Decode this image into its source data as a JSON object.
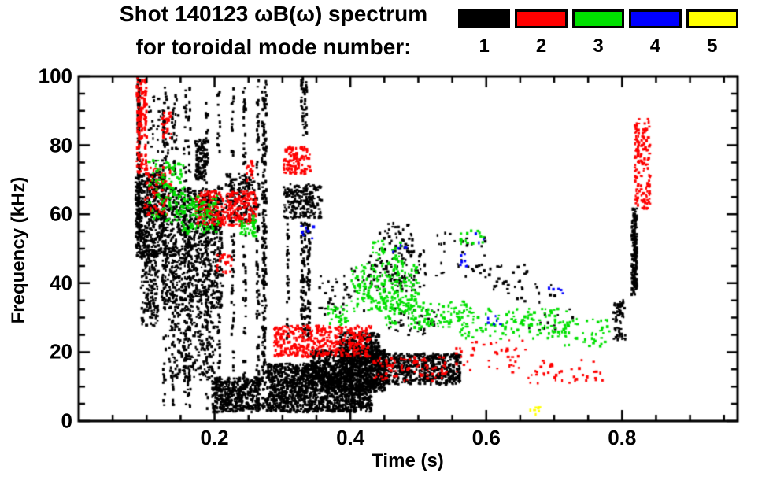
{
  "chart_data": {
    "type": "scatter",
    "title": "Shot 140123 ωB(ω) spectrum",
    "subtitle": "for toroidal mode number:",
    "xlabel": "Time (s)",
    "ylabel": "Frequency (kHz)",
    "xlim": [
      0,
      0.97
    ],
    "ylim": [
      0,
      100
    ],
    "xticks_major": [
      0.2,
      0.4,
      0.6,
      0.8
    ],
    "xtick_labels": [
      "0.2",
      "0.4",
      "0.6",
      "0.8"
    ],
    "x_minor_step": 0.05,
    "yticks_major": [
      0,
      20,
      40,
      60,
      80,
      100
    ],
    "ytick_labels": [
      "0",
      "20",
      "40",
      "60",
      "80",
      "100"
    ],
    "y_minor_step": 5,
    "grid": false,
    "legend_position": "top-right",
    "frame_color": "#000000",
    "background_color": "#ffffff",
    "seed": 42,
    "legend": [
      {
        "label": "1",
        "color": "#000000"
      },
      {
        "label": "2",
        "color": "#ff0000"
      },
      {
        "label": "3",
        "color": "#00e000"
      },
      {
        "label": "4",
        "color": "#0000ff"
      },
      {
        "label": "5",
        "color": "#ffff00"
      }
    ],
    "series": [
      {
        "name": "toroidal mode n=1",
        "color": "#000000",
        "clusters": [
          {
            "t": [
              0.078,
              0.092
            ],
            "f": [
              50,
              100
            ],
            "n": 140,
            "streaks": 2
          },
          {
            "t": [
              0.082,
              0.125
            ],
            "f": [
              48,
              72
            ],
            "n": 500
          },
          {
            "t": [
              0.09,
              0.115
            ],
            "f": [
              28,
              50
            ],
            "n": 160
          },
          {
            "t": [
              0.1,
              0.145
            ],
            "f": [
              72,
              95
            ],
            "n": 70
          },
          {
            "t": [
              0.12,
              0.21
            ],
            "f": [
              33,
              68
            ],
            "n": 900
          },
          {
            "t": [
              0.115,
              0.275
            ],
            "f": [
              4,
              97
            ],
            "n": 600,
            "streaks": 10
          },
          {
            "t": [
              0.17,
              0.185
            ],
            "f": [
              70,
              82
            ],
            "n": 110
          },
          {
            "t": [
              0.13,
              0.2
            ],
            "f": [
              12,
              33
            ],
            "n": 220
          },
          {
            "t": [
              0.195,
              0.265
            ],
            "f": [
              3,
              13
            ],
            "n": 420
          },
          {
            "t": [
              0.215,
              0.26
            ],
            "f": [
              58,
              72
            ],
            "n": 160
          },
          {
            "t": [
              0.262,
              0.275
            ],
            "f": [
              3,
              100
            ],
            "n": 170,
            "streaks": 2
          },
          {
            "t": [
              0.275,
              0.43
            ],
            "f": [
              3,
              17
            ],
            "n": 1500
          },
          {
            "t": [
              0.3,
              0.355
            ],
            "f": [
              59,
              69
            ],
            "n": 200
          },
          {
            "t": [
              0.295,
              0.345
            ],
            "f": [
              24,
              58
            ],
            "n": 160,
            "streaks": 5
          },
          {
            "t": [
              0.325,
              0.34
            ],
            "f": [
              83,
              100
            ],
            "n": 40,
            "streaks": 2
          },
          {
            "t": [
              0.34,
              0.45
            ],
            "f": [
              9,
              21
            ],
            "n": 700
          },
          {
            "t": [
              0.38,
              0.44
            ],
            "f": [
              17,
              26
            ],
            "n": 350
          },
          {
            "t": [
              0.43,
              0.56
            ],
            "f": [
              11,
              20
            ],
            "n": 650
          },
          {
            "t": [
              0.42,
              0.51
            ],
            "f": [
              38,
              50
            ],
            "n": 110
          },
          {
            "t": [
              0.44,
              0.49
            ],
            "f": [
              50,
              58
            ],
            "n": 40
          },
          {
            "t": [
              0.52,
              0.6
            ],
            "f": [
              42,
              55
            ],
            "n": 35
          },
          {
            "t": [
              0.58,
              0.66
            ],
            "f": [
              38,
              46
            ],
            "n": 25
          },
          {
            "t": [
              0.62,
              0.73
            ],
            "f": [
              26,
              40
            ],
            "n": 25
          },
          {
            "t": [
              0.785,
              0.805
            ],
            "f": [
              24,
              36
            ],
            "n": 60
          },
          {
            "t": [
              0.813,
              0.83
            ],
            "f": [
              37,
              62
            ],
            "n": 160,
            "streaks": 3
          },
          {
            "t": [
              0.35,
              0.42
            ],
            "f": [
              30,
              45
            ],
            "n": 40
          },
          {
            "t": [
              0.455,
              0.53
            ],
            "f": [
              25,
              33
            ],
            "n": 40
          }
        ]
      },
      {
        "name": "toroidal mode n=2",
        "color": "#ff0000",
        "clusters": [
          {
            "t": [
              0.082,
              0.098
            ],
            "f": [
              72,
              100
            ],
            "n": 140,
            "streaks": 3
          },
          {
            "t": [
              0.095,
              0.135
            ],
            "f": [
              60,
              74
            ],
            "n": 80
          },
          {
            "t": [
              0.12,
              0.135
            ],
            "f": [
              82,
              90
            ],
            "n": 30
          },
          {
            "t": [
              0.17,
              0.26
            ],
            "f": [
              57,
              67
            ],
            "n": 300
          },
          {
            "t": [
              0.2,
              0.225
            ],
            "f": [
              43,
              49
            ],
            "n": 25
          },
          {
            "t": [
              0.3,
              0.34
            ],
            "f": [
              72,
              80
            ],
            "n": 110
          },
          {
            "t": [
              0.285,
              0.43
            ],
            "f": [
              19,
              28
            ],
            "n": 420
          },
          {
            "t": [
              0.43,
              0.54
            ],
            "f": [
              12,
              19
            ],
            "n": 90
          },
          {
            "t": [
              0.55,
              0.66
            ],
            "f": [
              14,
              24
            ],
            "n": 45
          },
          {
            "t": [
              0.66,
              0.77
            ],
            "f": [
              11,
              18
            ],
            "n": 40
          },
          {
            "t": [
              0.817,
              0.84
            ],
            "f": [
              62,
              88
            ],
            "n": 150
          },
          {
            "t": [
              0.245,
              0.255
            ],
            "f": [
              70,
              76
            ],
            "n": 20
          }
        ]
      },
      {
        "name": "toroidal mode n=3",
        "color": "#00e000",
        "clusters": [
          {
            "t": [
              0.1,
              0.155
            ],
            "f": [
              58,
              76
            ],
            "n": 110
          },
          {
            "t": [
              0.145,
              0.205
            ],
            "f": [
              55,
              66
            ],
            "n": 110
          },
          {
            "t": [
              0.235,
              0.26
            ],
            "f": [
              54,
              60
            ],
            "n": 40
          },
          {
            "t": [
              0.4,
              0.5
            ],
            "f": [
              32,
              46
            ],
            "n": 220
          },
          {
            "t": [
              0.45,
              0.58
            ],
            "f": [
              27,
              35
            ],
            "n": 140
          },
          {
            "t": [
              0.56,
              0.72
            ],
            "f": [
              24,
              33
            ],
            "n": 120
          },
          {
            "t": [
              0.7,
              0.78
            ],
            "f": [
              22,
              30
            ],
            "n": 50
          },
          {
            "t": [
              0.43,
              0.475
            ],
            "f": [
              46,
              53
            ],
            "n": 30
          },
          {
            "t": [
              0.56,
              0.6
            ],
            "f": [
              50,
              56
            ],
            "n": 15
          },
          {
            "t": [
              0.365,
              0.395
            ],
            "f": [
              28,
              34
            ],
            "n": 30
          }
        ]
      },
      {
        "name": "toroidal mode n=4",
        "color": "#0000ff",
        "clusters": [
          {
            "t": [
              0.325,
              0.345
            ],
            "f": [
              53,
              57
            ],
            "n": 8
          },
          {
            "t": [
              0.55,
              0.575
            ],
            "f": [
              45,
              50
            ],
            "n": 9
          },
          {
            "t": [
              0.6,
              0.62
            ],
            "f": [
              28,
              31
            ],
            "n": 6
          },
          {
            "t": [
              0.69,
              0.715
            ],
            "f": [
              36,
              39
            ],
            "n": 6
          },
          {
            "t": [
              0.46,
              0.48
            ],
            "f": [
              49,
              52
            ],
            "n": 5
          },
          {
            "t": [
              0.58,
              0.6
            ],
            "f": [
              52,
              55
            ],
            "n": 4
          }
        ]
      },
      {
        "name": "toroidal mode n=5",
        "color": "#ffff00",
        "clusters": [
          {
            "t": [
              0.663,
              0.678
            ],
            "f": [
              2,
              5
            ],
            "n": 7
          }
        ]
      }
    ]
  }
}
